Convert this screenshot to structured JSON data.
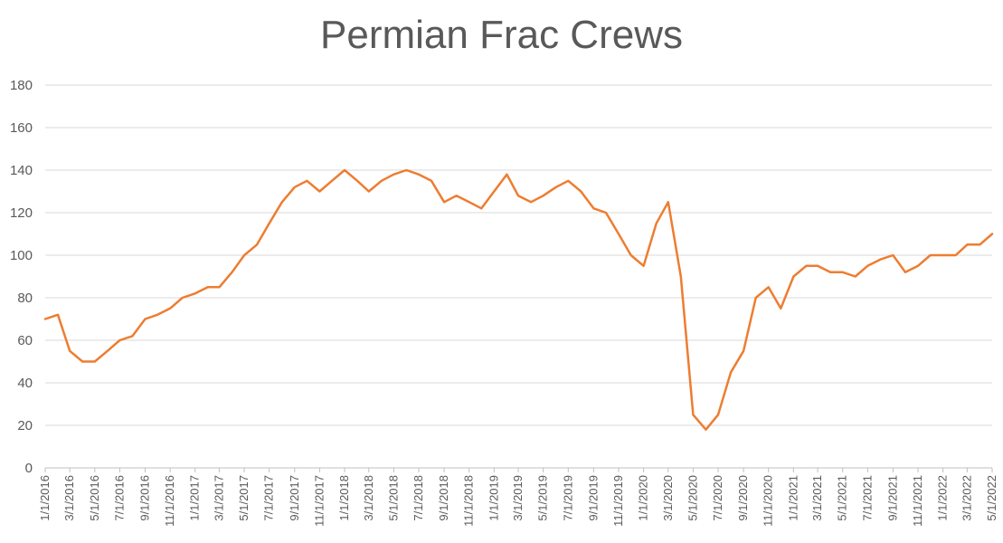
{
  "chart_data": {
    "type": "line",
    "title": "Permian Frac Crews",
    "xlabel": "",
    "ylabel": "",
    "ylim": [
      0,
      180
    ],
    "yticks": [
      0,
      20,
      40,
      60,
      80,
      100,
      120,
      140,
      160,
      180
    ],
    "xlim": [
      "1/1/2016",
      "5/1/2022"
    ],
    "xtick_labels": [
      "1/1/2016",
      "3/1/2016",
      "5/1/2016",
      "7/1/2016",
      "9/1/2016",
      "11/1/2016",
      "1/1/2017",
      "3/1/2017",
      "5/1/2017",
      "7/1/2017",
      "9/1/2017",
      "11/1/2017",
      "1/1/2018",
      "3/1/2018",
      "5/1/2018",
      "7/1/2018",
      "9/1/2018",
      "11/1/2018",
      "1/1/2019",
      "3/1/2019",
      "5/1/2019",
      "7/1/2019",
      "9/1/2019",
      "11/1/2019",
      "1/1/2020",
      "3/1/2020",
      "5/1/2020",
      "7/1/2020",
      "9/1/2020",
      "11/1/2020",
      "1/1/2021",
      "3/1/2021",
      "5/1/2021",
      "7/1/2021",
      "9/1/2021",
      "11/1/2021",
      "1/1/2022",
      "3/1/2022",
      "5/1/2022"
    ],
    "grid": true,
    "legend": "none",
    "colors": {
      "line": "#ED7D31",
      "grid": "#D9D9D9",
      "axis": "#BFBFBF",
      "text": "#595959"
    },
    "series": [
      {
        "x": [
          "1/1/2016",
          "2/1/2016",
          "3/1/2016",
          "4/1/2016",
          "5/1/2016",
          "6/1/2016",
          "7/1/2016",
          "8/1/2016",
          "9/1/2016",
          "10/1/2016",
          "11/1/2016",
          "12/1/2016",
          "1/1/2017",
          "2/1/2017",
          "3/1/2017",
          "4/1/2017",
          "5/1/2017",
          "6/1/2017",
          "7/1/2017",
          "8/1/2017",
          "9/1/2017",
          "10/1/2017",
          "11/1/2017",
          "12/1/2017",
          "1/1/2018",
          "2/1/2018",
          "3/1/2018",
          "4/1/2018",
          "5/1/2018",
          "6/1/2018",
          "7/1/2018",
          "8/1/2018",
          "9/1/2018",
          "10/1/2018",
          "11/1/2018",
          "12/1/2018",
          "1/1/2019",
          "2/1/2019",
          "3/1/2019",
          "4/1/2019",
          "5/1/2019",
          "6/1/2019",
          "7/1/2019",
          "8/1/2019",
          "9/1/2019",
          "10/1/2019",
          "11/1/2019",
          "12/1/2019",
          "1/1/2020",
          "2/1/2020",
          "3/1/2020",
          "4/1/2020",
          "5/1/2020",
          "6/1/2020",
          "7/1/2020",
          "8/1/2020",
          "9/1/2020",
          "10/1/2020",
          "11/1/2020",
          "12/1/2020",
          "1/1/2021",
          "2/1/2021",
          "3/1/2021",
          "4/1/2021",
          "5/1/2021",
          "6/1/2021",
          "7/1/2021",
          "8/1/2021",
          "9/1/2021",
          "10/1/2021",
          "11/1/2021",
          "12/1/2021",
          "1/1/2022",
          "2/1/2022",
          "3/1/2022",
          "4/1/2022",
          "5/1/2022"
        ],
        "values": [
          70,
          72,
          55,
          50,
          50,
          55,
          60,
          62,
          70,
          72,
          75,
          80,
          82,
          85,
          85,
          92,
          100,
          105,
          115,
          125,
          132,
          135,
          130,
          135,
          140,
          135,
          130,
          135,
          138,
          140,
          138,
          135,
          125,
          128,
          125,
          122,
          130,
          138,
          128,
          125,
          128,
          132,
          135,
          130,
          122,
          120,
          110,
          100,
          95,
          115,
          125,
          90,
          25,
          18,
          25,
          45,
          55,
          80,
          85,
          75,
          90,
          95,
          95,
          92,
          92,
          90,
          95,
          98,
          100,
          92,
          95,
          100,
          100,
          100,
          105,
          105,
          110
        ]
      }
    ]
  }
}
